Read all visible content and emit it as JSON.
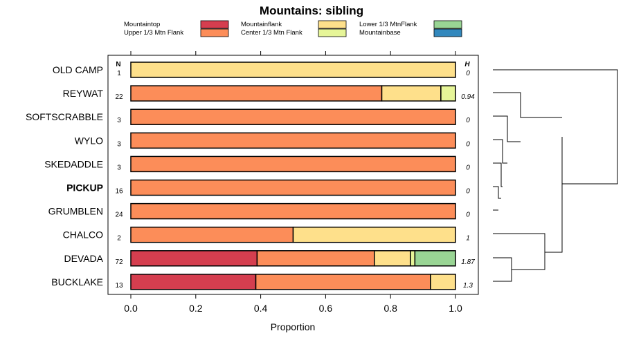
{
  "chart_data": {
    "type": "bar",
    "stacked": true,
    "orientation": "horizontal",
    "title": "Mountains: sibling",
    "xlabel": "Proportion",
    "xlim": [
      0,
      1
    ],
    "x_ticks": [
      "0.0",
      "0.2",
      "0.4",
      "0.6",
      "0.8",
      "1.0"
    ],
    "x_tick_values": [
      0,
      0.2,
      0.4,
      0.6,
      0.8,
      1.0
    ],
    "n_header": "N",
    "h_header": "H",
    "legend": [
      {
        "label": "Mountaintop",
        "color": "#d53e4f"
      },
      {
        "label": "Upper 1/3 Mtn Flank",
        "color": "#fc8d59"
      },
      {
        "label": "Mountainflank",
        "color": "#fee08b"
      },
      {
        "label": "Center 1/3 Mtn Flank",
        "color": "#e6f598"
      },
      {
        "label": "Lower 1/3 MtnFlank",
        "color": "#99d594"
      },
      {
        "label": "Mountainbase",
        "color": "#3288bd"
      }
    ],
    "series_order": [
      "Mountaintop",
      "Upper 1/3 Mtn Flank",
      "Mountainflank",
      "Center 1/3 Mtn Flank",
      "Lower 1/3 MtnFlank",
      "Mountainbase"
    ],
    "categories": [
      {
        "name": "OLD CAMP",
        "bold": false,
        "n": "1",
        "h": "0",
        "values": [
          0,
          0,
          1,
          0,
          0,
          0
        ]
      },
      {
        "name": "REYWAT",
        "bold": false,
        "n": "22",
        "h": "0.94",
        "values": [
          0,
          0.773,
          0.182,
          0.045,
          0,
          0
        ]
      },
      {
        "name": "SOFTSCRABBLE",
        "bold": false,
        "n": "3",
        "h": "0",
        "values": [
          0,
          1,
          0,
          0,
          0,
          0
        ]
      },
      {
        "name": "WYLO",
        "bold": false,
        "n": "3",
        "h": "0",
        "values": [
          0,
          1,
          0,
          0,
          0,
          0
        ]
      },
      {
        "name": "SKEDADDLE",
        "bold": false,
        "n": "3",
        "h": "0",
        "values": [
          0,
          1,
          0,
          0,
          0,
          0
        ]
      },
      {
        "name": "PICKUP",
        "bold": true,
        "n": "16",
        "h": "0",
        "values": [
          0,
          1,
          0,
          0,
          0,
          0
        ]
      },
      {
        "name": "GRUMBLEN",
        "bold": false,
        "n": "24",
        "h": "0",
        "values": [
          0,
          1,
          0,
          0,
          0,
          0
        ]
      },
      {
        "name": "CHALCO",
        "bold": false,
        "n": "2",
        "h": "1",
        "values": [
          0,
          0.5,
          0.5,
          0,
          0,
          0
        ]
      },
      {
        "name": "DEVADA",
        "bold": false,
        "n": "72",
        "h": "1.87",
        "values": [
          0.389,
          0.361,
          0.111,
          0.014,
          0.125,
          0
        ]
      },
      {
        "name": "BUCKLAKE",
        "bold": false,
        "n": "13",
        "h": "1.3",
        "values": [
          0.385,
          0.538,
          0.077,
          0,
          0,
          0
        ]
      }
    ]
  }
}
